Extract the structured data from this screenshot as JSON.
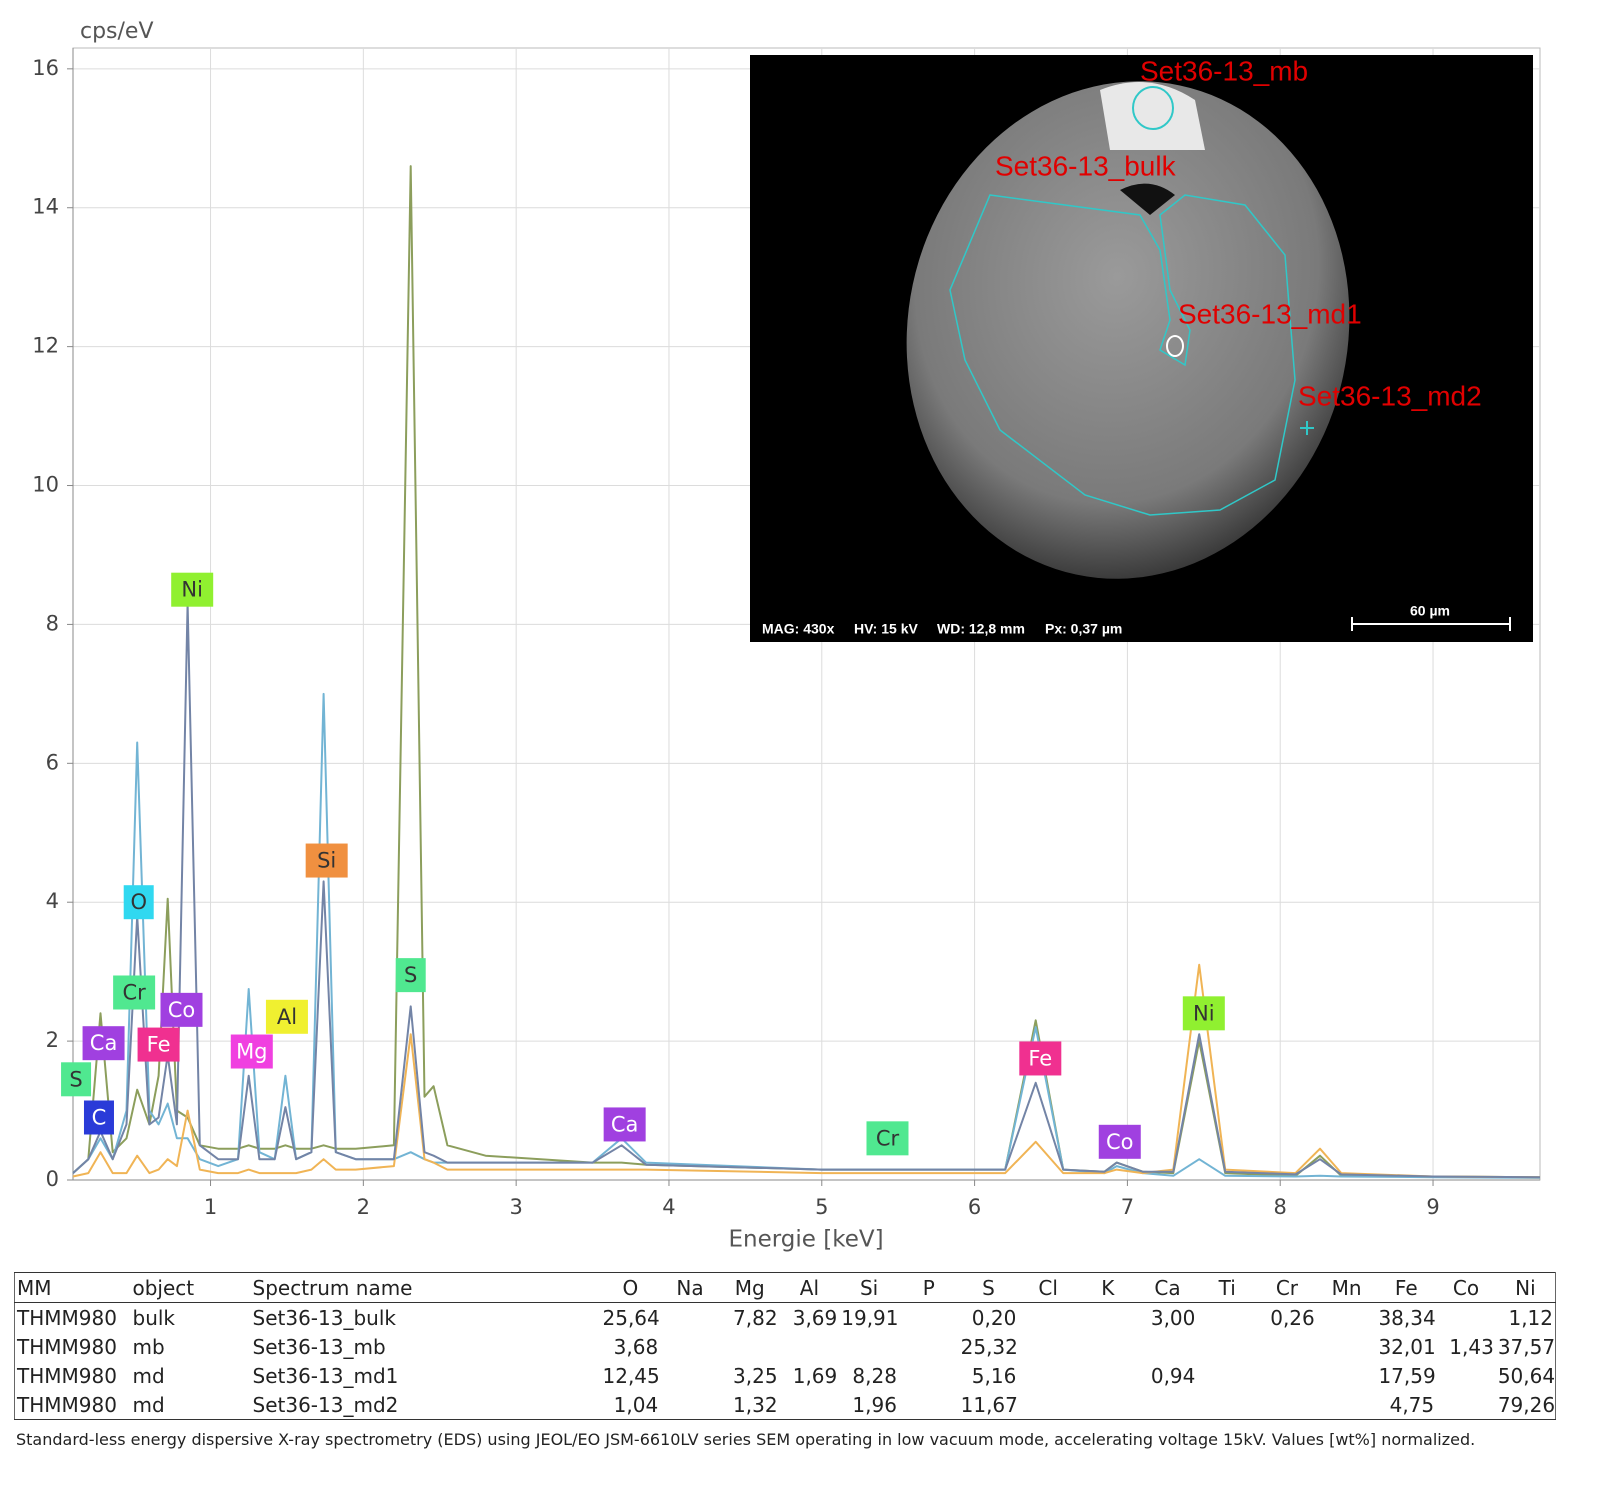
{
  "chart_data": {
    "type": "line",
    "y_label": "cps/eV",
    "x_label": "Energie [keV]",
    "xlim": [
      0.1,
      9.7
    ],
    "ylim": [
      0,
      16.3
    ],
    "xticks": [
      1,
      2,
      3,
      4,
      5,
      6,
      7,
      8,
      9
    ],
    "yticks": [
      0,
      2,
      4,
      6,
      8,
      10,
      12,
      14,
      16
    ],
    "grid": true,
    "x": [
      0.1,
      0.2,
      0.28,
      0.36,
      0.45,
      0.52,
      0.6,
      0.66,
      0.72,
      0.78,
      0.85,
      0.93,
      1.05,
      1.18,
      1.25,
      1.32,
      1.42,
      1.49,
      1.56,
      1.66,
      1.74,
      1.82,
      1.95,
      2.2,
      2.31,
      2.4,
      2.46,
      2.55,
      2.8,
      3.5,
      3.69,
      3.85,
      5.0,
      6.2,
      6.4,
      6.58,
      6.85,
      6.93,
      7.1,
      7.3,
      7.47,
      7.64,
      8.1,
      8.26,
      8.4,
      9.0,
      9.7
    ],
    "series": [
      {
        "color": "#8c9e5c",
        "values": [
          0.1,
          0.3,
          2.4,
          0.4,
          0.6,
          1.3,
          0.8,
          1.5,
          4.05,
          1.0,
          0.9,
          0.5,
          0.45,
          0.45,
          0.5,
          0.45,
          0.45,
          0.5,
          0.45,
          0.45,
          0.5,
          0.45,
          0.45,
          0.5,
          14.6,
          1.2,
          1.35,
          0.5,
          0.35,
          0.25,
          0.25,
          0.22,
          0.15,
          0.15,
          2.3,
          0.15,
          0.12,
          0.25,
          0.12,
          0.1,
          2.0,
          0.1,
          0.06,
          0.35,
          0.06,
          0.05,
          0.04
        ]
      },
      {
        "color": "#72b4d4",
        "values": [
          0.1,
          0.3,
          0.6,
          0.3,
          1.0,
          6.3,
          1.0,
          0.8,
          1.1,
          0.6,
          0.6,
          0.3,
          0.2,
          0.3,
          2.75,
          0.4,
          0.3,
          1.5,
          0.3,
          0.4,
          7.0,
          0.4,
          0.3,
          0.3,
          0.4,
          0.3,
          0.25,
          0.25,
          0.25,
          0.25,
          0.6,
          0.25,
          0.15,
          0.15,
          2.2,
          0.15,
          0.1,
          0.2,
          0.1,
          0.06,
          0.3,
          0.06,
          0.05,
          0.06,
          0.05,
          0.04,
          0.03
        ]
      },
      {
        "color": "#f0b455",
        "values": [
          0.05,
          0.1,
          0.4,
          0.1,
          0.1,
          0.35,
          0.1,
          0.15,
          0.3,
          0.2,
          1.0,
          0.15,
          0.1,
          0.1,
          0.15,
          0.1,
          0.1,
          0.1,
          0.1,
          0.15,
          0.3,
          0.15,
          0.15,
          0.2,
          2.1,
          0.3,
          0.25,
          0.15,
          0.15,
          0.15,
          0.15,
          0.15,
          0.1,
          0.1,
          0.55,
          0.1,
          0.1,
          0.15,
          0.1,
          0.15,
          3.1,
          0.15,
          0.1,
          0.45,
          0.1,
          0.05,
          0.04
        ]
      },
      {
        "color": "#7384a6",
        "values": [
          0.1,
          0.3,
          0.7,
          0.3,
          0.8,
          3.8,
          0.8,
          0.9,
          1.8,
          0.8,
          8.3,
          0.5,
          0.3,
          0.3,
          1.5,
          0.3,
          0.3,
          1.05,
          0.3,
          0.4,
          4.3,
          0.4,
          0.3,
          0.3,
          2.5,
          0.4,
          0.35,
          0.25,
          0.25,
          0.25,
          0.5,
          0.22,
          0.15,
          0.15,
          1.4,
          0.15,
          0.12,
          0.25,
          0.12,
          0.12,
          2.1,
          0.12,
          0.08,
          0.3,
          0.08,
          0.05,
          0.04
        ]
      }
    ],
    "annotations": [
      {
        "text": "C",
        "x": 0.27,
        "y": 0.9,
        "color": "#2a3bd8"
      },
      {
        "text": "S",
        "x": 0.12,
        "y": 1.45,
        "color": "#50e890"
      },
      {
        "text": "Ca",
        "x": 0.3,
        "y": 1.97,
        "color": "#a040e0"
      },
      {
        "text": "Cr",
        "x": 0.5,
        "y": 2.7,
        "color": "#50e890"
      },
      {
        "text": "O",
        "x": 0.53,
        "y": 4.0,
        "color": "#30d8f0"
      },
      {
        "text": "Co",
        "x": 0.81,
        "y": 2.45,
        "color": "#a040e0"
      },
      {
        "text": "Fe",
        "x": 0.66,
        "y": 1.95,
        "color": "#f03090"
      },
      {
        "text": "Ni",
        "x": 0.88,
        "y": 8.5,
        "color": "#90f030"
      },
      {
        "text": "Mg",
        "x": 1.27,
        "y": 1.85,
        "color": "#f040e0"
      },
      {
        "text": "Al",
        "x": 1.5,
        "y": 2.35,
        "color": "#f0f030"
      },
      {
        "text": "Si",
        "x": 1.76,
        "y": 4.6,
        "color": "#f09040"
      },
      {
        "text": "S",
        "x": 2.31,
        "y": 2.95,
        "color": "#50e890"
      },
      {
        "text": "Ca",
        "x": 3.71,
        "y": 0.8,
        "color": "#a040e0"
      },
      {
        "text": "Cr",
        "x": 5.43,
        "y": 0.6,
        "color": "#50e890"
      },
      {
        "text": "Fe",
        "x": 6.43,
        "y": 1.75,
        "color": "#f03090"
      },
      {
        "text": "Co",
        "x": 6.95,
        "y": 0.55,
        "color": "#a040e0"
      },
      {
        "text": "Ni",
        "x": 7.5,
        "y": 2.4,
        "color": "#90f030"
      }
    ]
  },
  "inset": {
    "labels": [
      "Set36-13_mb",
      "Set36-13_bulk",
      "Set36-13_md1",
      "Set36-13_md2"
    ],
    "info": [
      "MAG: 430x",
      "HV: 15 kV",
      "WD: 12,8 mm",
      "Px: 0,37 µm"
    ],
    "scale": "60 µm"
  },
  "table": {
    "header": [
      "MM",
      "object",
      "Spectrum name",
      "O",
      "Na",
      "Mg",
      "Al",
      "Si",
      "P",
      "S",
      "Cl",
      "K",
      "Ca",
      "Ti",
      "Cr",
      "Mn",
      "Fe",
      "Co",
      "Ni"
    ],
    "rows": [
      [
        "THMM980",
        "bulk",
        "Set36-13_bulk",
        "25,64",
        null,
        "7,82",
        "3,69",
        "19,91",
        null,
        "0,20",
        null,
        null,
        "3,00",
        null,
        "0,26",
        null,
        "38,34",
        null,
        "1,12"
      ],
      [
        "THMM980",
        "mb",
        "Set36-13_mb",
        "3,68",
        null,
        null,
        null,
        null,
        null,
        "25,32",
        null,
        null,
        null,
        null,
        null,
        null,
        "32,01",
        "1,43",
        "37,57"
      ],
      [
        "THMM980",
        "md",
        "Set36-13_md1",
        "12,45",
        null,
        "3,25",
        "1,69",
        "8,28",
        null,
        "5,16",
        null,
        null,
        "0,94",
        null,
        null,
        null,
        "17,59",
        null,
        "50,64"
      ],
      [
        "THMM980",
        "md",
        "Set36-13_md2",
        "1,04",
        null,
        "1,32",
        null,
        "1,96",
        null,
        "11,67",
        null,
        null,
        null,
        null,
        null,
        null,
        "4,75",
        null,
        "79,26"
      ]
    ]
  },
  "caption": "Standard-less energy dispersive X-ray spectrometry (EDS) using JEOL/EO JSM-6610LV series SEM operating in low vacuum mode, accelerating voltage 15kV. Values [wt%] normalized."
}
